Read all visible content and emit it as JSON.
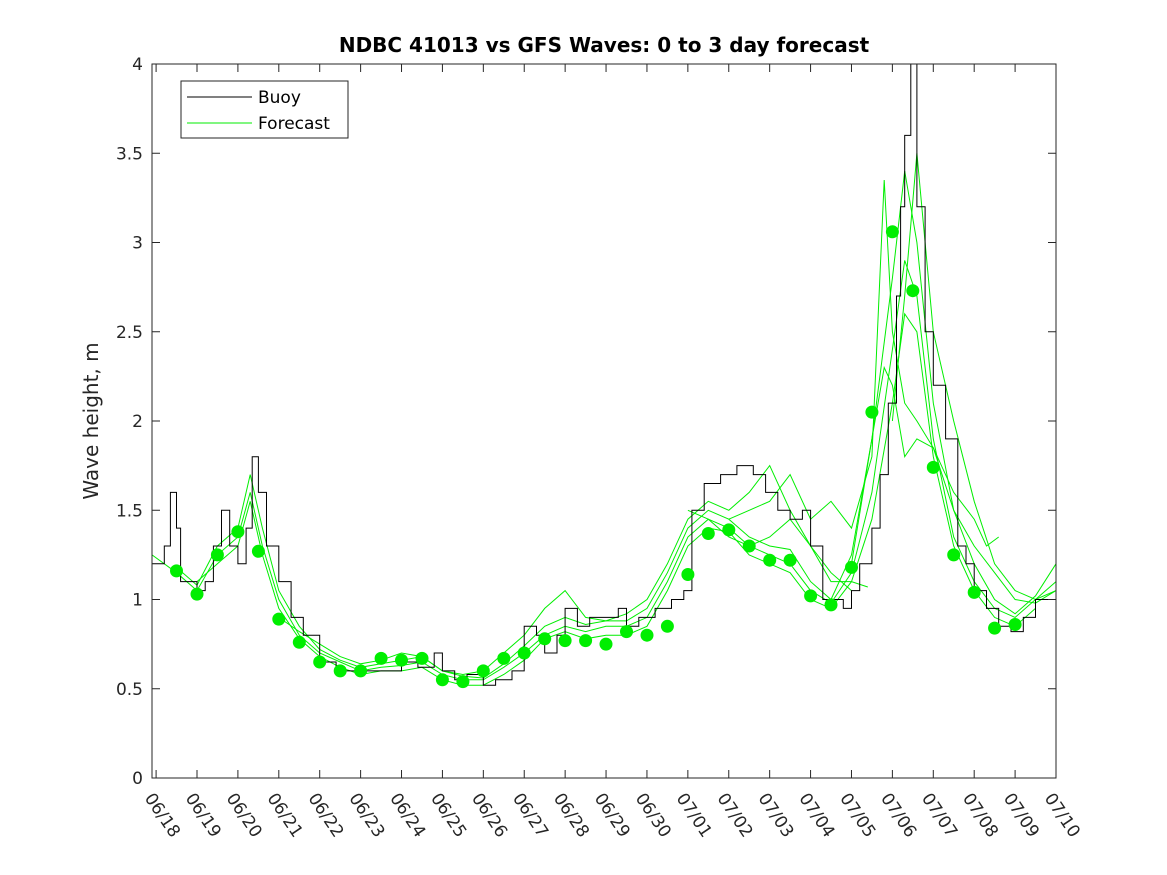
{
  "chart_data": {
    "type": "line",
    "title": "NDBC 41013 vs GFS Waves: 0 to 3 day forecast",
    "xlabel": "",
    "ylabel": "Wave height, m",
    "ylim": [
      0,
      4
    ],
    "yticks": [
      0,
      0.5,
      1,
      1.5,
      2,
      2.5,
      3,
      3.5,
      4
    ],
    "ytick_labels": [
      "0",
      "0.5",
      "1",
      "1.5",
      "2",
      "2.5",
      "3",
      "3.5",
      "4"
    ],
    "xlim_days": [
      -0.1,
      22.0
    ],
    "x_tick_labels": [
      "06/18",
      "06/19",
      "06/20",
      "06/21",
      "06/22",
      "06/23",
      "06/24",
      "06/25",
      "06/26",
      "06/27",
      "06/28",
      "06/29",
      "06/30",
      "07/01",
      "07/02",
      "07/03",
      "07/04",
      "07/05",
      "07/06",
      "07/07",
      "07/08",
      "07/09",
      "07/10"
    ],
    "grid": false,
    "legend": {
      "placement": "top-left",
      "entries": [
        "Buoy",
        "Forecast"
      ]
    },
    "colors": {
      "buoy": "#000000",
      "forecast": "#00ee00",
      "markers": "#00ee00"
    },
    "buoy_series": {
      "name": "Buoy",
      "x": [
        -0.1,
        0.2,
        0.35,
        0.5,
        0.6,
        0.8,
        1.0,
        1.2,
        1.4,
        1.6,
        1.7,
        1.8,
        2.0,
        2.1,
        2.2,
        2.35,
        2.5,
        2.7,
        3.0,
        3.3,
        3.6,
        4.0,
        4.4,
        5.0,
        5.5,
        6.0,
        6.4,
        6.8,
        7.0,
        7.3,
        7.6,
        8.0,
        8.3,
        8.5,
        8.7,
        9.0,
        9.3,
        9.5,
        9.8,
        10.0,
        10.3,
        10.6,
        11.0,
        11.3,
        11.5,
        11.8,
        12.2,
        12.6,
        12.9,
        13.1,
        13.4,
        13.8,
        14.2,
        14.6,
        14.9,
        15.2,
        15.5,
        15.8,
        16.0,
        16.3,
        16.5,
        16.8,
        17.0,
        17.2,
        17.5,
        17.7,
        17.9,
        18.1,
        18.2,
        18.3,
        18.45,
        18.6,
        18.8,
        19.0,
        19.3,
        19.6,
        19.8,
        20.0,
        20.3,
        20.6,
        20.9,
        21.2,
        21.5,
        21.8,
        22.0
      ],
      "y": [
        1.2,
        1.3,
        1.6,
        1.4,
        1.1,
        1.1,
        1.05,
        1.1,
        1.3,
        1.5,
        1.5,
        1.3,
        1.2,
        1.2,
        1.4,
        1.8,
        1.6,
        1.3,
        1.1,
        0.9,
        0.8,
        0.65,
        0.6,
        0.6,
        0.6,
        0.65,
        0.62,
        0.7,
        0.6,
        0.55,
        0.58,
        0.52,
        0.55,
        0.55,
        0.6,
        0.85,
        0.8,
        0.7,
        0.8,
        0.95,
        0.85,
        0.9,
        0.9,
        0.95,
        0.85,
        0.9,
        0.95,
        1.0,
        1.05,
        1.5,
        1.65,
        1.7,
        1.75,
        1.7,
        1.6,
        1.5,
        1.45,
        1.5,
        1.3,
        1.0,
        1.0,
        0.95,
        1.05,
        1.2,
        1.4,
        1.7,
        2.1,
        2.7,
        3.2,
        3.6,
        4.0,
        3.2,
        2.5,
        2.2,
        1.9,
        1.3,
        1.2,
        1.05,
        0.95,
        0.85,
        0.82,
        0.9,
        1.0,
        1.0,
        1.1
      ]
    },
    "forecast_series": [
      {
        "x": [
          -0.1,
          0.5,
          1.0,
          1.5,
          2.0,
          2.3,
          2.6,
          3.0,
          3.5,
          4.0,
          4.5,
          5.0,
          5.5,
          6.0,
          6.5,
          7.0,
          7.5,
          8.0,
          8.5,
          9.0,
          9.5,
          10.0,
          10.5,
          11.0,
          11.5,
          12.0,
          12.5,
          13.0,
          13.5,
          14.0,
          14.5,
          15.0,
          15.5,
          16.0,
          16.5,
          17.0,
          17.5,
          18.0,
          18.3,
          18.6,
          19.0,
          19.5,
          20.0,
          20.5,
          21.0,
          21.5,
          22.0
        ],
        "y": [
          1.25,
          1.15,
          1.05,
          1.25,
          1.35,
          1.6,
          1.3,
          1.0,
          0.8,
          0.7,
          0.65,
          0.6,
          0.62,
          0.63,
          0.65,
          0.58,
          0.55,
          0.55,
          0.62,
          0.7,
          0.8,
          0.85,
          0.82,
          0.85,
          0.85,
          0.9,
          1.1,
          1.35,
          1.45,
          1.4,
          1.3,
          1.25,
          1.2,
          1.05,
          0.98,
          1.15,
          1.6,
          2.4,
          2.9,
          2.7,
          1.9,
          1.35,
          1.1,
          0.95,
          0.9,
          1.0,
          1.1
        ]
      },
      {
        "x": [
          0.5,
          1.0,
          1.5,
          2.0,
          2.3,
          2.6,
          3.0,
          3.5,
          4.0,
          4.5,
          5.0,
          5.5,
          6.0,
          6.5,
          7.0,
          7.5,
          8.0,
          8.5,
          9.0,
          9.5,
          10.0,
          10.5,
          11.0,
          11.5,
          12.0,
          12.5,
          13.0,
          13.5,
          14.0,
          14.5,
          15.0,
          15.5,
          16.0,
          16.5,
          17.0,
          17.5,
          18.0,
          18.3,
          18.6,
          19.0,
          19.5,
          20.0,
          20.5,
          21.0,
          21.5,
          22.0
        ],
        "y": [
          1.18,
          1.08,
          1.3,
          1.4,
          1.7,
          1.4,
          1.05,
          0.85,
          0.72,
          0.66,
          0.62,
          0.64,
          0.66,
          0.68,
          0.6,
          0.57,
          0.56,
          0.64,
          0.74,
          0.85,
          0.9,
          0.86,
          0.88,
          0.88,
          0.95,
          1.15,
          1.4,
          1.5,
          1.45,
          1.35,
          1.3,
          1.28,
          1.1,
          1.0,
          1.25,
          1.9,
          2.8,
          3.4,
          3.0,
          2.1,
          1.5,
          1.2,
          1.0,
          0.92,
          1.02,
          1.2
        ]
      },
      {
        "x": [
          1.0,
          1.5,
          2.0,
          2.3,
          2.6,
          3.0,
          3.5,
          4.0,
          4.5,
          5.0,
          5.5,
          6.0,
          6.5,
          7.0,
          7.5,
          8.0,
          8.5,
          9.0,
          9.5,
          10.0,
          10.5,
          11.0,
          11.5,
          12.0,
          12.5,
          13.0,
          13.5,
          14.0,
          14.5,
          15.0,
          15.5,
          16.0,
          16.5,
          17.0,
          17.5,
          18.0,
          18.3,
          18.6,
          19.0,
          19.5,
          20.0,
          20.5,
          21.0,
          21.5
        ],
        "y": [
          1.1,
          1.2,
          1.3,
          1.55,
          1.25,
          0.95,
          0.78,
          0.68,
          0.62,
          0.58,
          0.6,
          0.6,
          0.62,
          0.55,
          0.52,
          0.52,
          0.58,
          0.66,
          0.78,
          0.82,
          0.78,
          0.8,
          0.8,
          0.85,
          1.05,
          1.3,
          1.4,
          1.38,
          1.25,
          1.2,
          1.15,
          1.0,
          0.95,
          1.1,
          1.45,
          2.1,
          2.6,
          2.5,
          1.8,
          1.3,
          1.05,
          0.9,
          0.85,
          0.95
        ]
      },
      {
        "x": [
          3.0,
          3.5,
          4.0,
          4.5,
          5.0,
          5.5,
          6.0,
          6.5,
          7.0,
          7.5,
          8.0,
          8.5,
          9.0,
          9.5,
          10.0,
          10.5,
          11.0,
          11.5,
          12.0,
          12.5,
          13.0,
          13.5,
          14.0,
          14.5,
          15.0,
          15.5,
          16.0,
          16.5,
          17.0,
          17.4
        ],
        "y": [
          0.9,
          0.82,
          0.75,
          0.68,
          0.64,
          0.66,
          0.7,
          0.68,
          0.6,
          0.58,
          0.6,
          0.7,
          0.8,
          0.95,
          1.05,
          0.9,
          0.88,
          0.92,
          1.0,
          1.2,
          1.45,
          1.55,
          1.5,
          1.6,
          1.75,
          1.5,
          1.3,
          1.1,
          1.1,
          1.07
        ]
      },
      {
        "x": [
          14.0,
          14.5,
          15.0,
          15.5,
          16.0,
          16.5,
          17.0,
          17.5,
          17.8,
          18.0,
          18.3,
          18.6,
          19.0,
          19.5,
          20.0,
          20.5,
          21.0,
          21.5,
          22.0
        ],
        "y": [
          1.45,
          1.5,
          1.55,
          1.7,
          1.45,
          1.55,
          1.4,
          1.8,
          3.35,
          2.5,
          2.1,
          2.0,
          1.85,
          1.5,
          1.3,
          1.15,
          1.0,
          0.98,
          1.05
        ]
      },
      {
        "x": [
          17.0,
          17.5,
          17.8,
          18.0,
          18.3,
          18.6,
          19.0,
          19.5,
          20.0,
          20.3,
          20.6
        ],
        "y": [
          1.2,
          1.9,
          2.3,
          2.2,
          1.8,
          1.9,
          1.85,
          1.6,
          1.45,
          1.3,
          1.35
        ]
      },
      {
        "x": [
          18.0,
          18.3,
          18.6,
          19.0,
          19.5,
          20.0,
          20.5,
          21.0,
          21.5,
          22.0
        ],
        "y": [
          2.0,
          2.7,
          3.5,
          2.5,
          2.0,
          1.55,
          1.2,
          1.05,
          1.0,
          1.05
        ]
      },
      {
        "x": [
          13.0,
          13.5,
          14.0,
          14.5,
          15.0,
          15.5,
          16.0,
          16.5,
          17.0
        ],
        "y": [
          1.5,
          1.45,
          1.35,
          1.3,
          1.35,
          1.45,
          1.3,
          1.15,
          1.05
        ]
      }
    ],
    "marker_series": {
      "name": "Forecast",
      "x": [
        0.5,
        1.0,
        1.5,
        2.0,
        2.5,
        3.0,
        3.5,
        4.0,
        4.5,
        5.0,
        5.5,
        6.0,
        6.5,
        7.0,
        7.5,
        8.0,
        8.5,
        9.0,
        9.5,
        10.0,
        10.5,
        11.0,
        11.5,
        12.0,
        12.5,
        13.0,
        13.5,
        14.0,
        14.5,
        15.0,
        15.5,
        16.0,
        16.5,
        17.0,
        17.5,
        18.0,
        18.5,
        19.0,
        19.5,
        20.0,
        20.5,
        21.0
      ],
      "y": [
        1.16,
        1.03,
        1.25,
        1.38,
        1.27,
        0.89,
        0.76,
        0.65,
        0.6,
        0.6,
        0.67,
        0.66,
        0.67,
        0.55,
        0.54,
        0.6,
        0.67,
        0.7,
        0.78,
        0.77,
        0.77,
        0.75,
        0.82,
        0.8,
        0.85,
        1.14,
        1.37,
        1.39,
        1.3,
        1.22,
        1.22,
        1.02,
        0.97,
        1.18,
        2.05,
        3.06,
        2.73,
        1.74,
        1.25,
        1.04,
        0.84,
        0.86
      ]
    }
  }
}
